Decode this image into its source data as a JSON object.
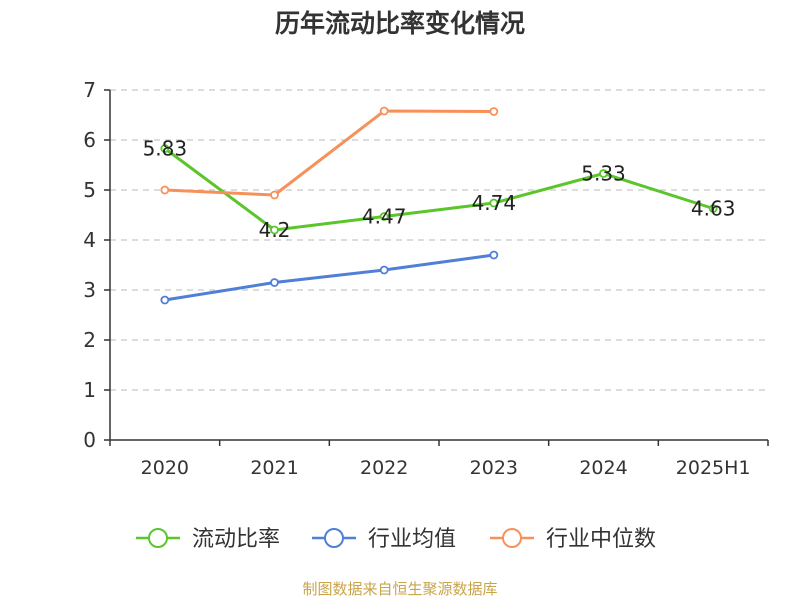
{
  "chart_data": {
    "type": "line",
    "title": "历年流动比率变化情况",
    "categories": [
      "2020",
      "2021",
      "2022",
      "2023",
      "2024",
      "2025H1"
    ],
    "ylim": [
      0,
      7
    ],
    "yticks": [
      0,
      1,
      2,
      3,
      4,
      5,
      6,
      7
    ],
    "grid": true,
    "legend_position": "bottom",
    "series": [
      {
        "name": "流动比率",
        "color": "#5cc52b",
        "values": [
          5.83,
          4.2,
          4.47,
          4.74,
          5.33,
          4.63
        ],
        "show_labels": true
      },
      {
        "name": "行业均值",
        "color": "#4f7fd6",
        "values": [
          2.8,
          3.15,
          3.4,
          3.7,
          null,
          null
        ],
        "show_labels": false
      },
      {
        "name": "行业中位数",
        "color": "#f7915a",
        "values": [
          5.0,
          4.9,
          6.58,
          6.57,
          null,
          null
        ],
        "show_labels": false
      }
    ]
  },
  "footer": "制图数据来自恒生聚源数据库"
}
